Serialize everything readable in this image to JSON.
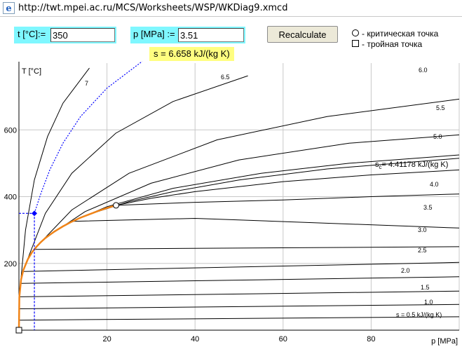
{
  "window": {
    "url": "http://twt.mpei.ac.ru/MCS/Worksheets/WSP/WKDiag9.xmcd"
  },
  "inputs": {
    "t_label": "t [°C]:=",
    "t_value": "350",
    "p_label": "p [MPa] :=",
    "p_value": "3.51"
  },
  "recalculate_label": "Recalculate",
  "legend": {
    "critical": "- критическая точка",
    "triple": "- тройная точка"
  },
  "entropy_result": "s = 6.658 kJ/(kg K)",
  "colors": {
    "input_bg": "#7ff7ff",
    "result_bg": "#fffe80",
    "saturation_line": "#f08418",
    "state_point": "#0000ff",
    "grid": "#c8c8c8"
  },
  "chart_data": {
    "type": "line",
    "xlabel": "p [MPa]",
    "ylabel": "T [°C]",
    "xlim": [
      0,
      100
    ],
    "ylim": [
      0,
      800
    ],
    "x_ticks": [
      20,
      40,
      60,
      80
    ],
    "y_ticks": [
      200,
      400,
      600
    ],
    "grid": true,
    "critical_point": {
      "p": 22.06,
      "T": 373.9
    },
    "triple_point": {
      "p": 0.0006,
      "T": 0.01
    },
    "state_point": {
      "p": 3.51,
      "T": 350,
      "s": 6.658
    },
    "saturation_curve": [
      [
        0.0,
        0
      ],
      [
        0.1,
        100
      ],
      [
        0.5,
        152
      ],
      [
        1.0,
        180
      ],
      [
        2.0,
        212
      ],
      [
        3.0,
        234
      ],
      [
        4.0,
        250
      ],
      [
        5.0,
        264
      ],
      [
        6.0,
        276
      ],
      [
        8.0,
        295
      ],
      [
        10.0,
        311
      ],
      [
        12.0,
        325
      ],
      [
        14.0,
        337
      ],
      [
        16.0,
        347
      ],
      [
        18.0,
        357
      ],
      [
        20.0,
        366
      ],
      [
        22.06,
        373.9
      ]
    ],
    "entropy_label_main": "s",
    "entropy_label_sub": "c",
    "entropy_label_value": "= 4.41178 kJ/(kg K)",
    "isentropes": [
      {
        "label": "s = 0.5 kJ/(kg K)",
        "points": [
          [
            0,
            30
          ],
          [
            100,
            40
          ]
        ]
      },
      {
        "label": "1.0",
        "points": [
          [
            0,
            64
          ],
          [
            100,
            77
          ]
        ]
      },
      {
        "label": "1.5",
        "points": [
          [
            0,
            100
          ],
          [
            100,
            117
          ]
        ]
      },
      {
        "label": "2.0",
        "points": [
          [
            0.5,
            140
          ],
          [
            100,
            160
          ]
        ]
      },
      {
        "label": "2.5",
        "points": [
          [
            1.0,
            176
          ],
          [
            100,
            203
          ]
        ]
      },
      {
        "label": "3.0",
        "points": [
          [
            3.5,
            242
          ],
          [
            100,
            250
          ]
        ]
      },
      {
        "label": "3.5",
        "points": [
          [
            12,
            326
          ],
          [
            40,
            335
          ],
          [
            100,
            306
          ]
        ]
      },
      {
        "label": "4.0",
        "points": [
          [
            22.06,
            373.9
          ],
          [
            40,
            383
          ],
          [
            60,
            390
          ],
          [
            80,
            400
          ],
          [
            100,
            408
          ]
        ]
      },
      {
        "label": "",
        "points": [
          [
            22.06,
            373.9
          ],
          [
            30,
            395
          ],
          [
            40,
            415
          ],
          [
            60,
            445
          ],
          [
            80,
            465
          ],
          [
            100,
            480
          ]
        ]
      },
      {
        "label": "",
        "points": [
          [
            16,
            347
          ],
          [
            25,
            385
          ],
          [
            35,
            415
          ],
          [
            50,
            450
          ],
          [
            70,
            483
          ],
          [
            100,
            515
          ]
        ]
      },
      {
        "label": "5.0",
        "points": [
          [
            11,
            320
          ],
          [
            20,
            370
          ],
          [
            35,
            425
          ],
          [
            55,
            470
          ],
          [
            75,
            500
          ],
          [
            100,
            525
          ]
        ]
      },
      {
        "label": "5.5",
        "points": [
          [
            6.5,
            280
          ],
          [
            15,
            355
          ],
          [
            30,
            440
          ],
          [
            50,
            510
          ],
          [
            75,
            560
          ],
          [
            100,
            585
          ]
        ]
      },
      {
        "label": "6.0",
        "points": [
          [
            4,
            250
          ],
          [
            12,
            360
          ],
          [
            25,
            470
          ],
          [
            45,
            570
          ],
          [
            70,
            640
          ],
          [
            100,
            692
          ]
        ]
      },
      {
        "label": "6.5",
        "points": [
          [
            1.3,
            190
          ],
          [
            6,
            350
          ],
          [
            12,
            470
          ],
          [
            22,
            590
          ],
          [
            35,
            685
          ],
          [
            52,
            762
          ]
        ]
      },
      {
        "label": "7",
        "points": [
          [
            0.4,
            145
          ],
          [
            1.5,
            300
          ],
          [
            3.5,
            450
          ],
          [
            6.5,
            580
          ],
          [
            10,
            680
          ],
          [
            16,
            785
          ]
        ]
      }
    ],
    "state_isentrope": [
      [
        3.51,
        350
      ],
      [
        5,
        410
      ],
      [
        7,
        480
      ],
      [
        10,
        560
      ],
      [
        14,
        640
      ],
      [
        20,
        725
      ],
      [
        28,
        805
      ]
    ]
  }
}
